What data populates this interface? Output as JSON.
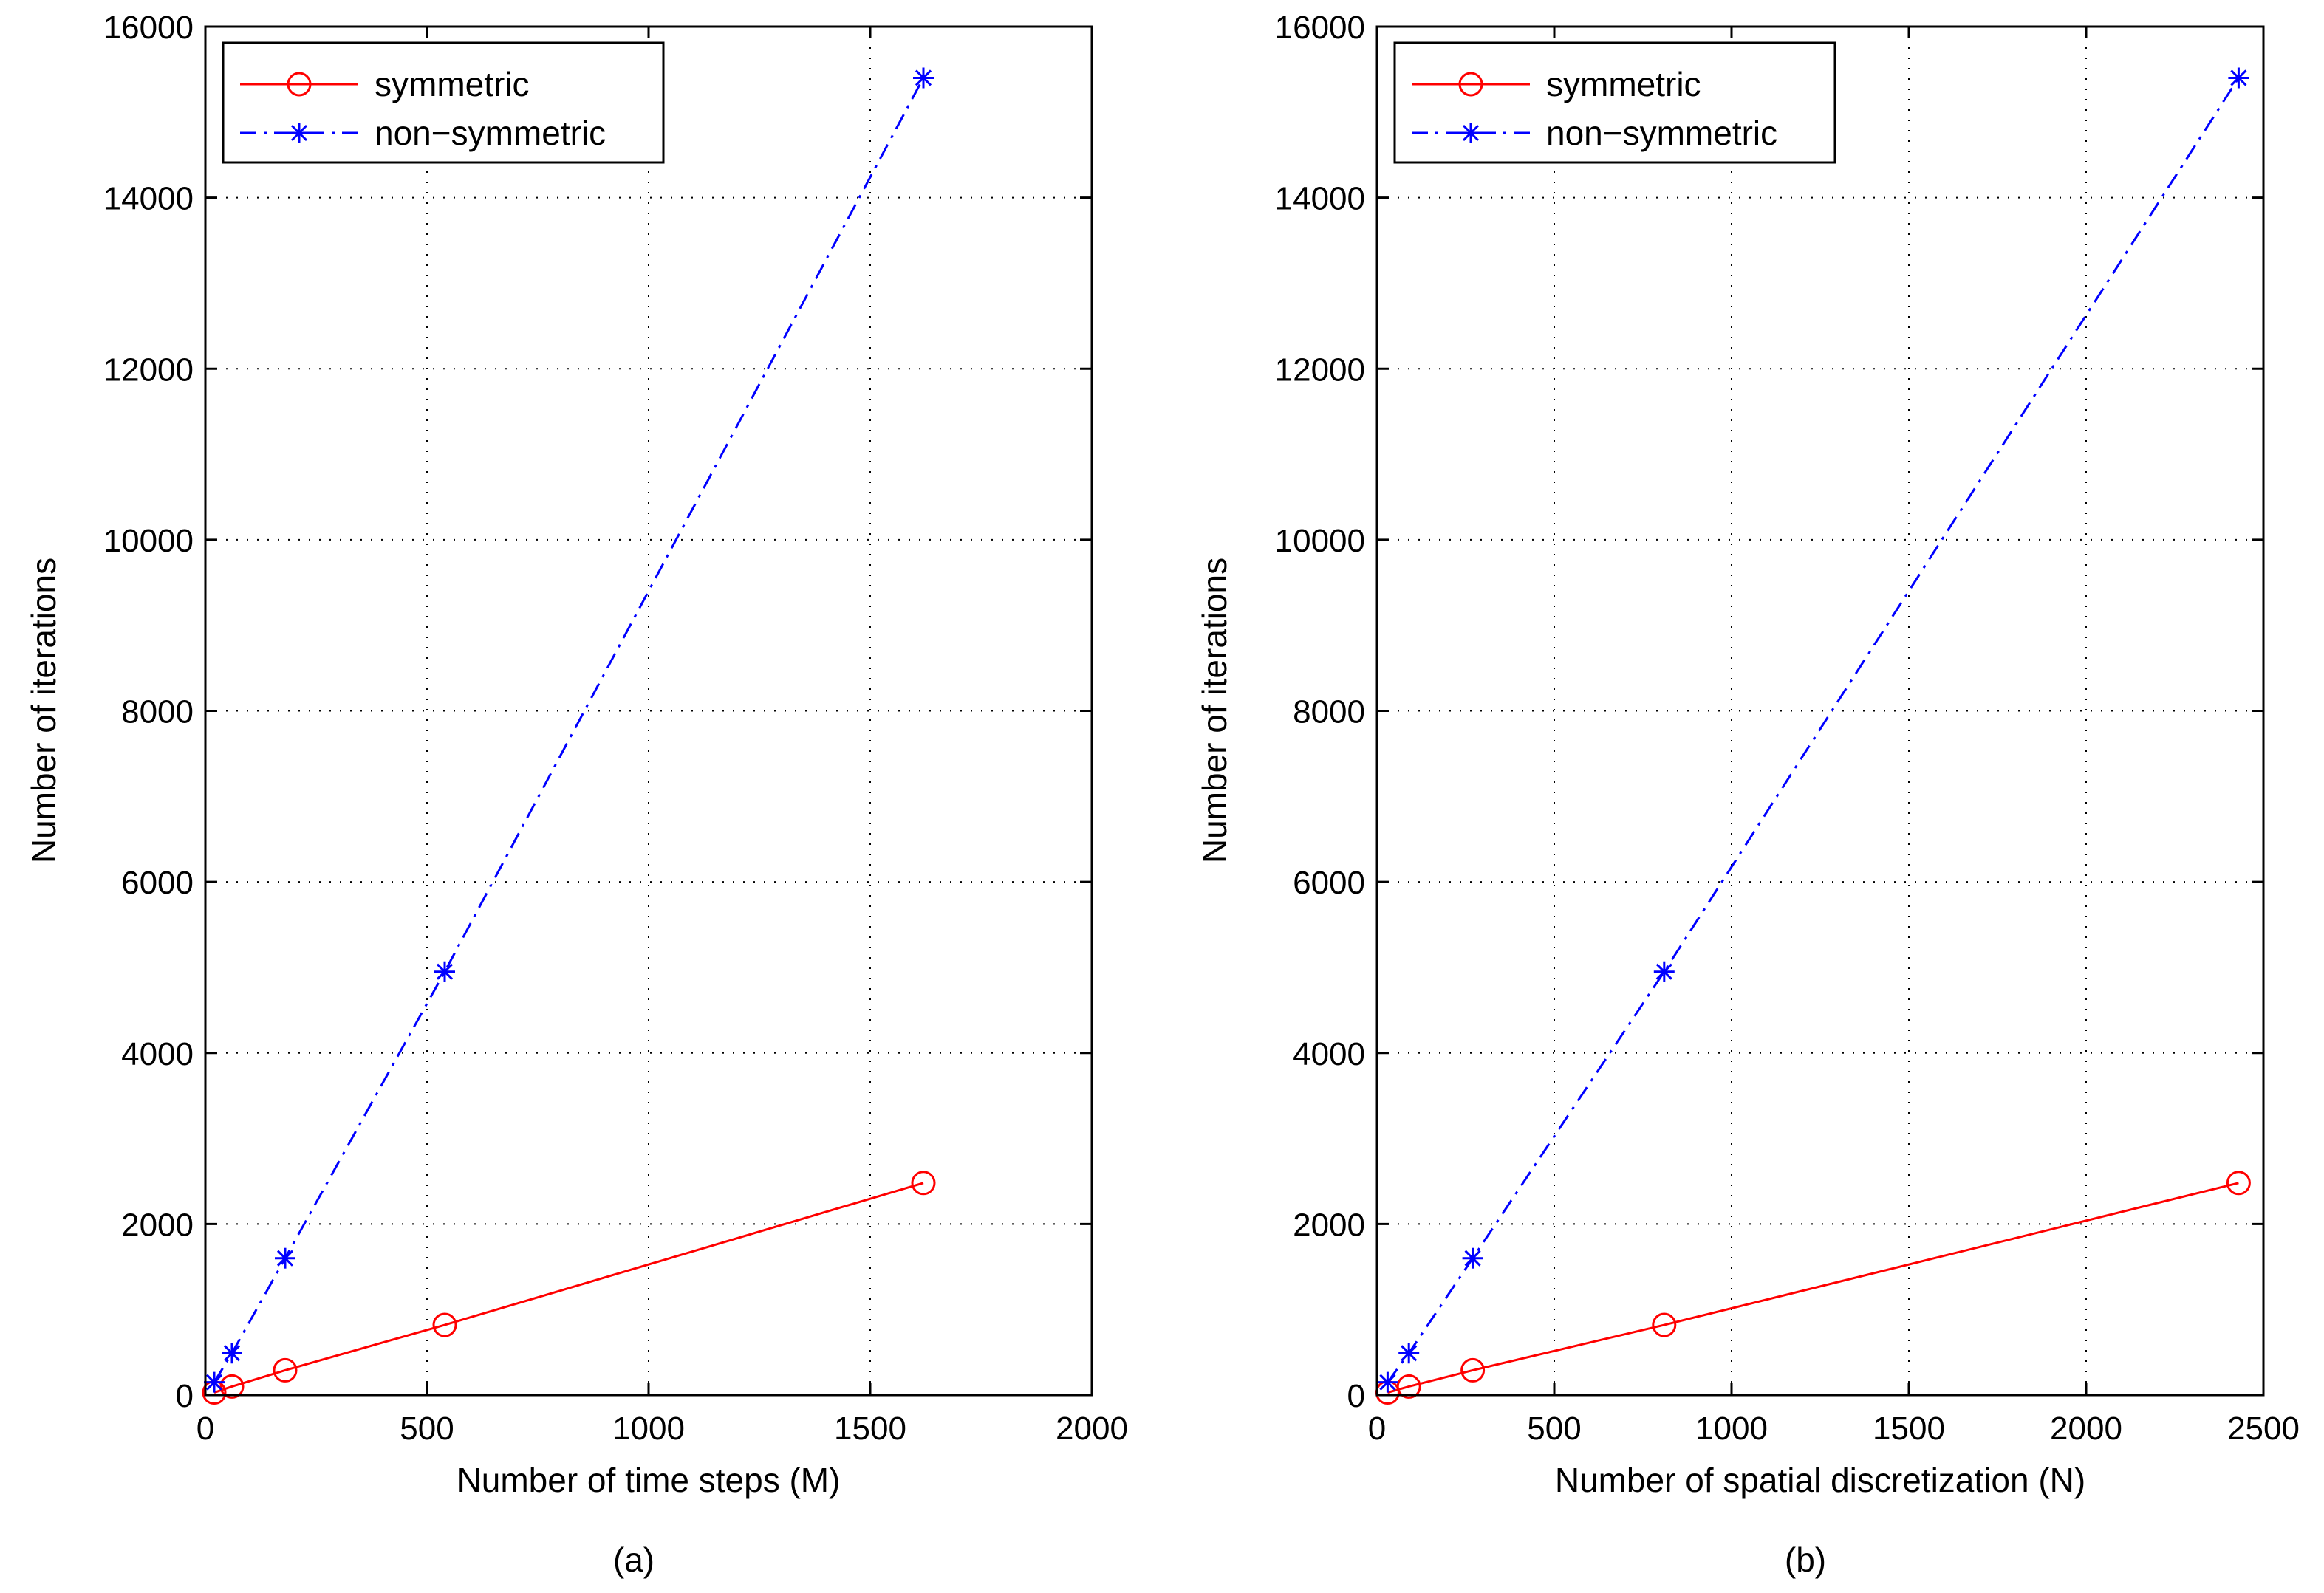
{
  "chart_data": [
    {
      "type": "line",
      "panel": "(a)",
      "xlabel": "Number of time steps (M)",
      "ylabel": "Number of iterations",
      "xlim": [
        0,
        2000
      ],
      "ylim": [
        0,
        16000
      ],
      "xticks": [
        0,
        500,
        1000,
        1500,
        2000
      ],
      "yticks": [
        0,
        2000,
        4000,
        6000,
        8000,
        10000,
        12000,
        14000,
        16000
      ],
      "grid": true,
      "legend_position": "top-left",
      "series": [
        {
          "name": "symmetric",
          "color": "#ff0000",
          "line_style": "solid",
          "marker": "circle",
          "x": [
            20,
            60,
            180,
            540,
            1620
          ],
          "y": [
            30,
            100,
            290,
            820,
            2480
          ]
        },
        {
          "name": "non−symmetric",
          "color": "#0000ff",
          "line_style": "dash-dot",
          "marker": "asterisk",
          "x": [
            20,
            60,
            180,
            540,
            1620
          ],
          "y": [
            150,
            490,
            1600,
            4950,
            15400
          ]
        }
      ]
    },
    {
      "type": "line",
      "panel": "(b)",
      "xlabel": "Number of spatial discretization (N)",
      "ylabel": "Number of iterations",
      "xlim": [
        0,
        2500
      ],
      "ylim": [
        0,
        16000
      ],
      "xticks": [
        0,
        500,
        1000,
        1500,
        2000,
        2500
      ],
      "yticks": [
        0,
        2000,
        4000,
        6000,
        8000,
        10000,
        12000,
        14000,
        16000
      ],
      "grid": true,
      "legend_position": "top-left",
      "series": [
        {
          "name": "symmetric",
          "color": "#ff0000",
          "line_style": "solid",
          "marker": "circle",
          "x": [
            30,
            90,
            270,
            810,
            2430
          ],
          "y": [
            30,
            100,
            290,
            820,
            2480
          ]
        },
        {
          "name": "non−symmetric",
          "color": "#0000ff",
          "line_style": "dash-dot",
          "marker": "asterisk",
          "x": [
            30,
            90,
            270,
            810,
            2430
          ],
          "y": [
            150,
            490,
            1600,
            4950,
            15400
          ]
        }
      ]
    }
  ]
}
